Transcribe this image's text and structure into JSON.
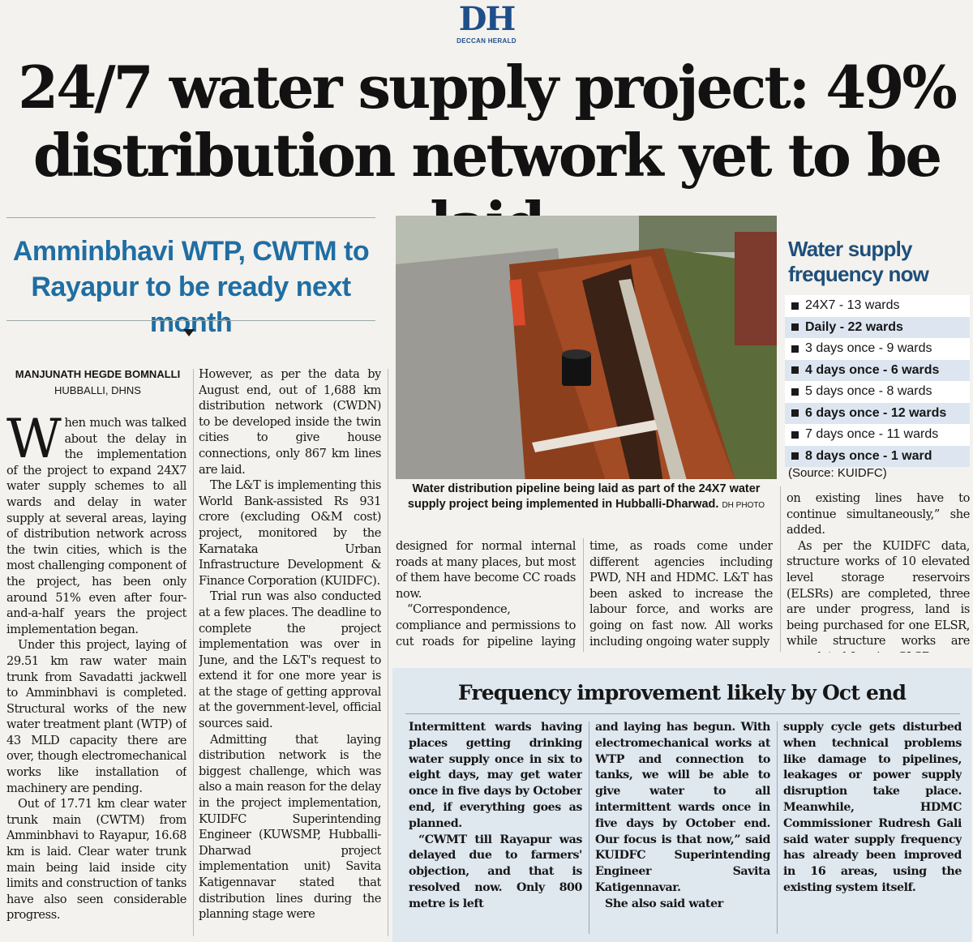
{
  "masthead": {
    "logo": "DH",
    "name": "DECCAN HERALD"
  },
  "headline": {
    "line1": "24/7 water supply project: 49%",
    "line2": "distribution network yet to be laid"
  },
  "kicker": {
    "line1": "Amminbhavi WTP, CWTM to",
    "line2": "Rayapur to be ready next month"
  },
  "byline": {
    "author": "MANJUNATH HEGDE BOMNALLI",
    "place": "HUBBALLI, DHNS"
  },
  "story": {
    "dropcap": "W",
    "col1": [
      "hen much was talked about the delay in the implementation of the project to expand 24X7 water supply schemes to all wards and delay in water supply at several areas, laying of distribution network across the twin cities, which is the most challenging component of the project, has been only around 51% even after four-and-a-half years the project implementation began.",
      "Under this project, laying of 29.51 km raw water main trunk from Savadatti jackwell to Amminbhavi is completed. Structural works of the new water treatment plant (WTP) of 43 MLD capacity there are over, though electromechanical works like installation of machinery are pending.",
      "Out of 17.71 km clear water trunk main (CWTM) from Amminbhavi to Rayapur, 16.68 km is laid. Clear water trunk main being laid inside city limits and construction of tanks have also seen considerable progress."
    ],
    "col2": [
      "However, as per the data by August end, out of 1,688 km distribution network (CWDN) to be developed inside the twin cities to give house connections, only 867 km lines are laid.",
      "The L&T is implementing this World Bank-assisted Rs 931 crore (excluding O&M cost) project, monitored by the Karnataka Urban Infrastructure Development & Finance Corporation (KUIDFC).",
      "Trial run was also conducted at a few places. The deadline to complete the project implementation was over in June, and the L&T's request to extend it for one more year is at the stage of getting approval at the government-level, official sources said.",
      "Admitting that laying distribution network is the biggest challenge, which was also a main reason for the delay in the project implementation, KUIDFC Superintending Engineer (KUWSMP, Hubballi-Dharwad project implementation unit) Savita Katigennavar stated that distribution lines during the planning stage were"
    ],
    "col3": [
      "designed for normal internal roads at many places, but most of them have become CC roads now.",
      "“Correspondence, compliance and permissions to cut roads for pipeline laying takes"
    ],
    "col4": [
      "time, as roads come under different agencies including PWD, NH and HDMC. L&T has been asked to increase the labour force, and works are going on fast now. All works including ongoing water supply"
    ],
    "col5": [
      "on existing lines have to continue simultaneously,” she added.",
      "As per the KUIDFC data, structure works of 10 elevated level storage reservoirs (ELSRs) are completed, three are under progress, land is being purchased for one ELSR, while structure works are completed for nine GLSRs."
    ]
  },
  "photo": {
    "caption": "Water distribution pipeline being laid as part of the 24X7 water supply project being implemented in Hubballi-Dharwad.",
    "credit": "DH PHOTO"
  },
  "sidebar": {
    "title_line1": "Water supply",
    "title_line2": "frequency now",
    "items": [
      "24X7 - 13 wards",
      "Daily - 22 wards",
      "3 days once - 9 wards",
      "4 days once - 6 wards",
      "5 days once - 8 wards",
      "6 days once - 12 wards",
      "7 days once - 11 wards",
      "8 days once - 1 ward"
    ],
    "source": "(Source: KUIDFC)"
  },
  "subarticle": {
    "title": "Frequency improvement likely by Oct end",
    "col1": [
      "Intermittent wards having places getting drinking water supply once in six to eight days, may get water once in five days by October end, if everything goes as planned.",
      "“CWMT till Rayapur was delayed due to farmers' objection, and that is resolved now. Only 800 metre is left"
    ],
    "col2": [
      "and laying has begun. With electromechanical works at WTP and connection to tanks, we will be able to give water to all intermittent wards once in five days by October end. Our focus is that now,” said KUIDFC Superintending Engineer Savita Katigennavar.",
      "She also said water"
    ],
    "col3": [
      "supply cycle gets disturbed when technical problems like damage to pipelines, leakages or power supply disruption take place. Meanwhile, HDMC Commissioner Rudresh Gali said water supply frequency has already been improved in 16 areas, using the existing system itself."
    ]
  }
}
